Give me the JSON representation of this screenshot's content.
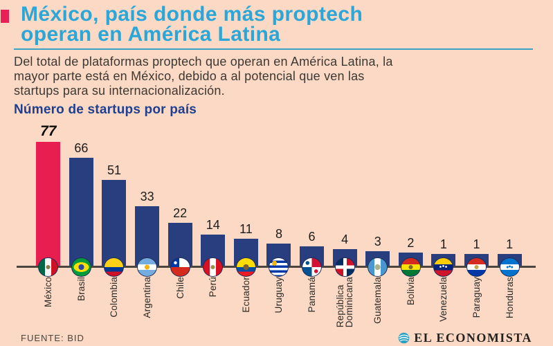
{
  "page": {
    "background_color": "#fbd9c4",
    "accent_red": "#e82055",
    "title_cyan": "#2aa7d8",
    "rule_cyan": "#3aa2c4",
    "chart_title_navy": "#203f8e",
    "body_text_color": "#3c3834"
  },
  "header": {
    "title_lines": [
      "México, país donde más proptech",
      "operan en América Latina"
    ],
    "subtitle_lines": [
      "Del total de plataformas proptech que operan en América Latina, la",
      "mayor parte está en México, debido a al potencial que ven las",
      "startups para su internacionalización."
    ]
  },
  "chart_data": {
    "type": "bar",
    "title": "Número de startups por país",
    "categories": [
      "México",
      "Brasil",
      "Colombia",
      "Argentina",
      "Chile",
      "Perú",
      "Ecuador",
      "Uruguay",
      "Panamá",
      "República Dominicana",
      "Guatemala",
      "Bolivia",
      "Venezuela",
      "Paraguay",
      "Honduras"
    ],
    "values": [
      77,
      66,
      51,
      33,
      22,
      14,
      11,
      8,
      6,
      4,
      3,
      2,
      1,
      1,
      1
    ],
    "flags": [
      "mexico",
      "brasil",
      "colombia",
      "argentina",
      "chile",
      "peru",
      "ecuador",
      "uruguay",
      "panama",
      "republica-dominicana",
      "guatemala",
      "bolivia",
      "venezuela",
      "paraguay",
      "honduras"
    ],
    "bar_colors": {
      "highlight_index": 0,
      "highlight": "#e91e50",
      "default": "#283e7e"
    },
    "value_labels_shown": true,
    "xlabel": "",
    "ylabel": "",
    "ylim": [
      0,
      80
    ],
    "grid": false,
    "legend": false,
    "axis_line_color": "#4a453f"
  },
  "footer": {
    "source": "FUENTE: BID",
    "brand": "EL ECONOMISTA",
    "brand_icon": "el-economista-globe-icon",
    "brand_icon_color": "#2aa0c2"
  }
}
